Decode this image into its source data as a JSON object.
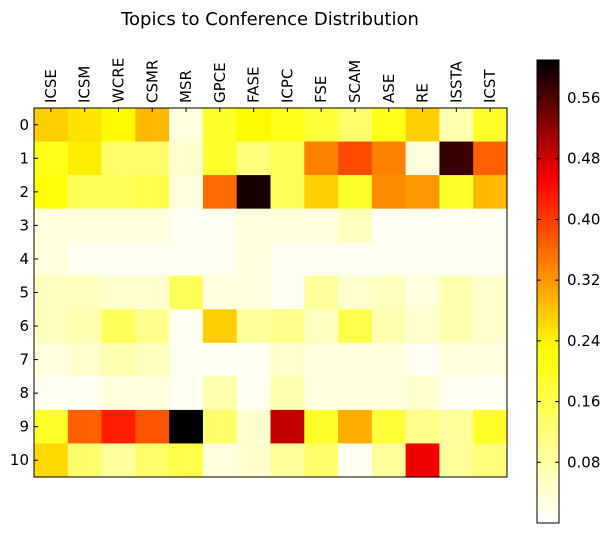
{
  "chart_data": {
    "type": "heatmap",
    "title": "Topics to Conference Distribution",
    "xlabel": "",
    "ylabel": "",
    "x_categories": [
      "ICSE",
      "ICSM",
      "WCRE",
      "CSMR",
      "MSR",
      "GPCE",
      "FASE",
      "ICPC",
      "FSE",
      "SCAM",
      "ASE",
      "RE",
      "ISSTA",
      "ICST"
    ],
    "y_categories": [
      "0",
      "1",
      "2",
      "3",
      "4",
      "5",
      "6",
      "7",
      "8",
      "9",
      "10"
    ],
    "values": [
      [
        0.2,
        0.18,
        0.16,
        0.22,
        0.02,
        0.13,
        0.16,
        0.14,
        0.12,
        0.09,
        0.14,
        0.2,
        0.05,
        0.13
      ],
      [
        0.14,
        0.17,
        0.09,
        0.09,
        0.03,
        0.13,
        0.08,
        0.1,
        0.27,
        0.32,
        0.27,
        0.02,
        0.56,
        0.3
      ],
      [
        0.15,
        0.1,
        0.1,
        0.11,
        0.02,
        0.29,
        0.59,
        0.1,
        0.2,
        0.13,
        0.26,
        0.25,
        0.13,
        0.22
      ],
      [
        0.02,
        0.02,
        0.02,
        0.02,
        0.01,
        0.01,
        0.02,
        0.02,
        0.02,
        0.04,
        0.01,
        0.01,
        0.01,
        0.01
      ],
      [
        0.02,
        0.01,
        0.01,
        0.01,
        0.01,
        0.01,
        0.02,
        0.01,
        0.01,
        0.01,
        0.01,
        0.01,
        0.01,
        0.01
      ],
      [
        0.04,
        0.04,
        0.03,
        0.03,
        0.1,
        0.02,
        0.02,
        0.01,
        0.06,
        0.03,
        0.04,
        0.02,
        0.05,
        0.03
      ],
      [
        0.04,
        0.05,
        0.1,
        0.07,
        0.01,
        0.2,
        0.06,
        0.07,
        0.04,
        0.11,
        0.05,
        0.03,
        0.05,
        0.03
      ],
      [
        0.02,
        0.03,
        0.05,
        0.04,
        0.01,
        0.01,
        0.01,
        0.03,
        0.02,
        0.02,
        0.02,
        0.01,
        0.02,
        0.02
      ],
      [
        0.01,
        0.01,
        0.02,
        0.02,
        0.01,
        0.05,
        0.01,
        0.05,
        0.02,
        0.02,
        0.02,
        0.03,
        0.01,
        0.01
      ],
      [
        0.13,
        0.3,
        0.36,
        0.31,
        0.61,
        0.09,
        0.03,
        0.44,
        0.13,
        0.23,
        0.12,
        0.07,
        0.06,
        0.13
      ],
      [
        0.19,
        0.09,
        0.06,
        0.09,
        0.11,
        0.02,
        0.03,
        0.06,
        0.09,
        0.01,
        0.06,
        0.4,
        0.06,
        0.08
      ]
    ],
    "vmin": 0.0,
    "vmax": 0.61,
    "colormap": "hot_r",
    "colorbar_ticks": [
      0.08,
      0.16,
      0.24,
      0.32,
      0.4,
      0.48,
      0.56
    ],
    "colorbar_tick_labels": [
      "0.08",
      "0.16",
      "0.24",
      "0.32",
      "0.40",
      "0.48",
      "0.56"
    ],
    "grid": false,
    "x_tick_position": "top",
    "x_tick_rotation": 90
  }
}
